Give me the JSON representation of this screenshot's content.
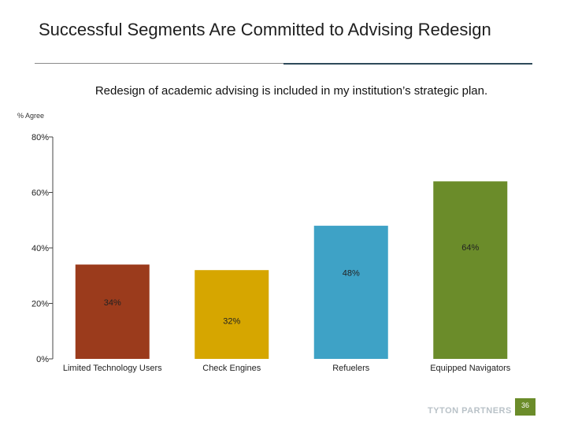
{
  "slide": {
    "title": "Successful Segments Are Committed to Advising Redesign",
    "logo": "TYTON PARTNERS",
    "page_number": "36"
  },
  "chart_data": {
    "type": "bar",
    "title": "Redesign of academic advising is included in my institution’s strategic plan.",
    "ylabel": "% Agree",
    "categories": [
      "Limited Technology Users",
      "Check Engines",
      "Refuelers",
      "Equipped Navigators"
    ],
    "values": [
      34,
      32,
      48,
      64
    ],
    "data_labels": [
      "34%",
      "32%",
      "48%",
      "64%"
    ],
    "colors": [
      "#9b3b1c",
      "#d6a600",
      "#3ea2c6",
      "#6b8c2a"
    ],
    "ylim": [
      0,
      80
    ],
    "yticks": [
      0,
      20,
      40,
      60,
      80
    ],
    "ytick_labels": [
      "0%",
      "20%",
      "40%",
      "60%",
      "80%"
    ],
    "grid": false,
    "legend": "none"
  }
}
